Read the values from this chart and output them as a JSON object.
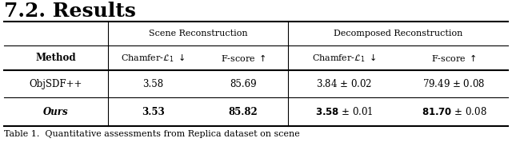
{
  "title": "7.2. Results",
  "caption": "Table 1.  Quantitative assessments from Replica dataset on scene",
  "header_group1": "Scene Reconstruction",
  "header_group2": "Decomposed Reconstruction",
  "background_color": "#ffffff",
  "rows": [
    {
      "method": "ObjSDF++",
      "method_italic": false,
      "scene_chamfer": "3.58",
      "scene_fscore": "85.69",
      "decomp_chamfer": "3.84 ± 0.02",
      "decomp_fscore": "79.49 ± 0.08",
      "bold": false
    },
    {
      "method": "Ours",
      "method_italic": true,
      "scene_chamfer": "3.53",
      "scene_fscore": "85.82",
      "decomp_chamfer": "3.58 ± 0.01",
      "decomp_fscore": "81.70 ± 0.08",
      "bold": true
    }
  ]
}
